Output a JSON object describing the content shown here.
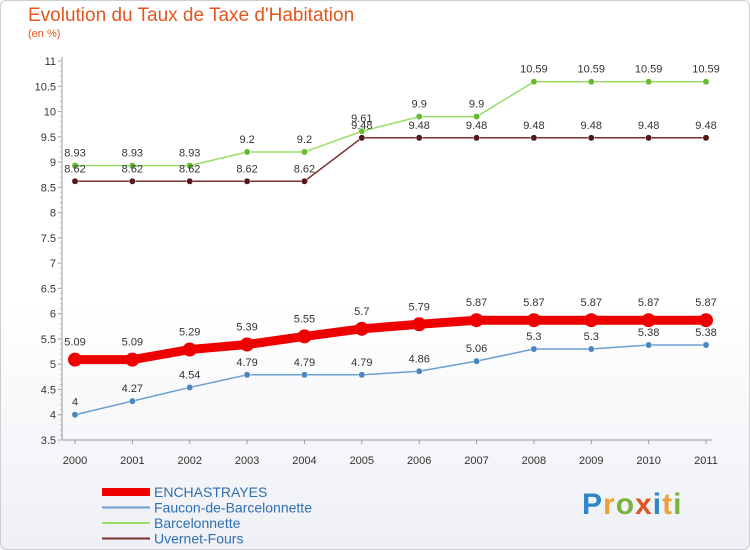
{
  "title": "Evolution du Taux de Taxe d'Habitation",
  "subtitle": "(en %)",
  "logo": {
    "letters": [
      "P",
      "r",
      "o",
      "x",
      "i",
      "t",
      "i"
    ],
    "colors": [
      "#2f86c9",
      "#e8a33d",
      "#7bb23f",
      "#e0561f",
      "#2f86c9",
      "#e8a33d",
      "#7bb23f"
    ]
  },
  "chart_data": {
    "type": "line",
    "x": [
      "2000",
      "2001",
      "2002",
      "2003",
      "2004",
      "2005",
      "2006",
      "2007",
      "2008",
      "2009",
      "2010",
      "2011"
    ],
    "ylim": [
      3.5,
      11
    ],
    "yticks": [
      "3.5",
      "4",
      "4.5",
      "5",
      "5.5",
      "6",
      "6.5",
      "7",
      "7.5",
      "8",
      "8.5",
      "9",
      "9.5",
      "10",
      "10.5",
      "11"
    ],
    "grid": false,
    "legend_position": "bottom-left",
    "series": [
      {
        "name": "ENCHASTRAYES",
        "color": "#ee0000",
        "values": [
          5.09,
          5.09,
          5.29,
          5.39,
          5.55,
          5.7,
          5.79,
          5.87,
          5.87,
          5.87,
          5.87,
          5.87
        ],
        "labels": [
          "5.09",
          "5.09",
          "5.29",
          "5.39",
          "5.55",
          "5.7",
          "5.79",
          "5.87",
          "5.87",
          "5.87",
          "5.87",
          "5.87"
        ]
      },
      {
        "name": "Faucon-de-Barcelonnette",
        "color": "#6b9fcf",
        "values": [
          4,
          4.27,
          4.54,
          4.79,
          4.79,
          4.79,
          4.86,
          5.06,
          5.3,
          5.3,
          5.38,
          5.38
        ],
        "labels": [
          "4",
          "4.27",
          "4.54",
          "4.79",
          "4.79",
          "4.79",
          "4.86",
          "5.06",
          "5.3",
          "5.3",
          "5.38",
          "5.38"
        ]
      },
      {
        "name": "Barcelonnette",
        "color": "#99dd66",
        "values": [
          8.93,
          8.93,
          8.93,
          9.2,
          9.2,
          9.61,
          9.9,
          9.9,
          10.59,
          10.59,
          10.59,
          10.59
        ],
        "labels": [
          "8.93",
          "8.93",
          "8.93",
          "9.2",
          "9.2",
          "9.61",
          "9.9",
          "9.9",
          "10.59",
          "10.59",
          "10.59",
          "10.59"
        ]
      },
      {
        "name": "Uvernet-Fours",
        "color": "#7a2f2f",
        "values": [
          8.62,
          8.62,
          8.62,
          8.62,
          8.62,
          9.48,
          9.48,
          9.48,
          9.48,
          9.48,
          9.48,
          9.48
        ],
        "labels": [
          "8.62",
          "8.62",
          "8.62",
          "8.62",
          "8.62",
          "9.48",
          "9.48",
          "9.48",
          "9.48",
          "9.48",
          "9.48",
          "9.48"
        ]
      }
    ]
  }
}
